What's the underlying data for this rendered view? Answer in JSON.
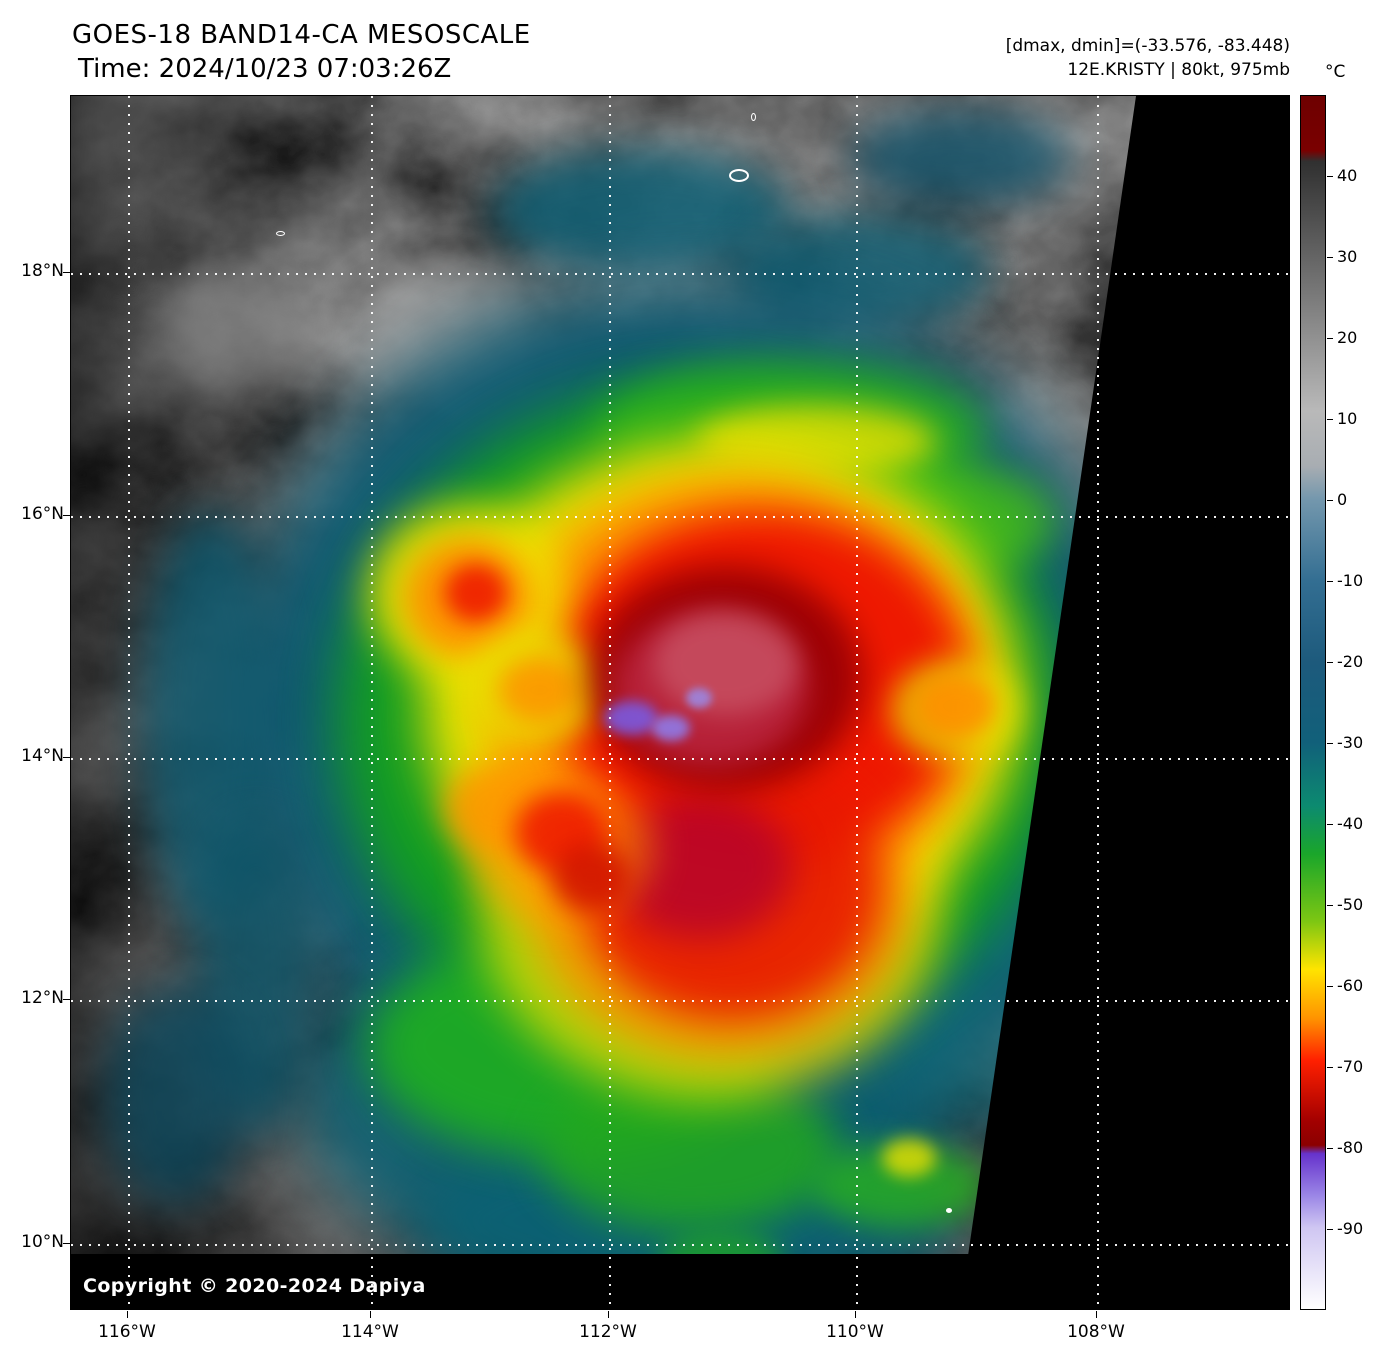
{
  "header": {
    "title": "GOES-18 BAND14-CA MESOSCALE",
    "time_line": "Time: 2024/10/23 07:03:26Z",
    "dminmax_line": "[dmax, dmin]=(-33.576, -83.448)",
    "storm_line": "12E.KRISTY | 80kt, 975mb"
  },
  "colorbar": {
    "unit_label": "°C",
    "tick_labels": [
      "40",
      "30",
      "20",
      "10",
      "0",
      "-10",
      "-20",
      "-30",
      "-40",
      "-50",
      "-60",
      "-70",
      "-80",
      "-90"
    ]
  },
  "axes": {
    "lat_labels": [
      "18°N",
      "16°N",
      "14°N",
      "12°N",
      "10°N"
    ],
    "lon_labels": [
      "116°W",
      "114°W",
      "112°W",
      "110°W",
      "108°W"
    ]
  },
  "map": {
    "copyright": "Copyright © 2020-2024 Dapiya"
  }
}
